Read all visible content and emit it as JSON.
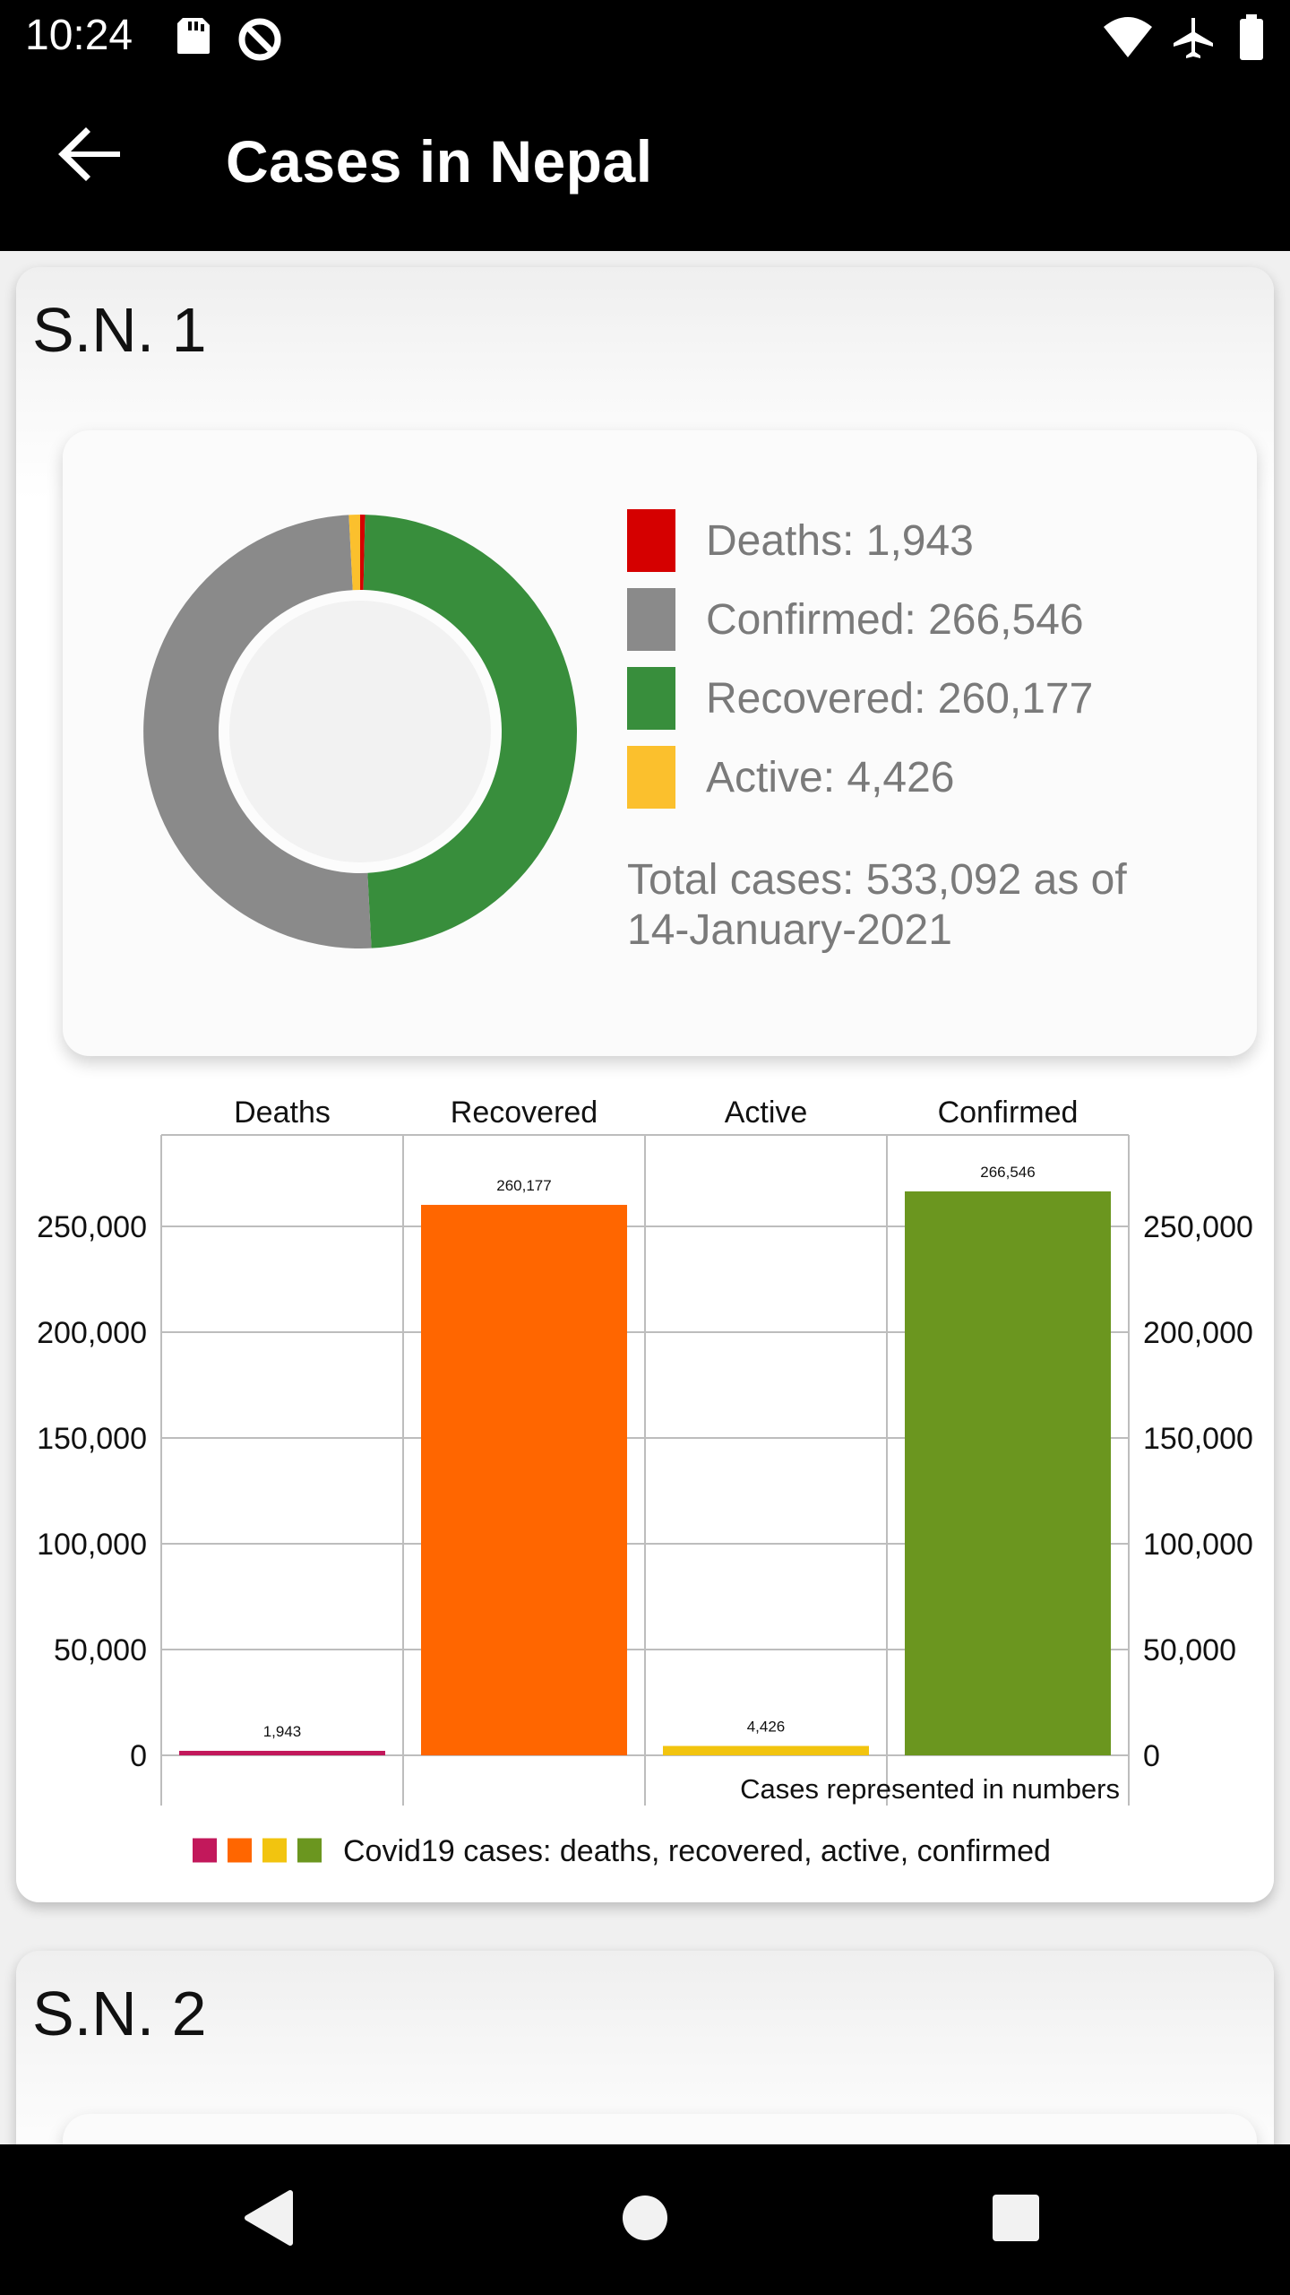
{
  "status_bar": {
    "time": "10:24",
    "left_icons": [
      "sd-card-icon",
      "data-saver-icon"
    ],
    "right_icons": [
      "wifi-icon",
      "airplane-icon",
      "battery-icon"
    ]
  },
  "app_bar": {
    "title": "Cases in Nepal",
    "back_icon": "arrow-back-icon"
  },
  "cards": [
    {
      "title": "S.N. 1",
      "donut": {
        "legend": [
          {
            "label": "Deaths: 1,943",
            "color": "#d50000"
          },
          {
            "label": "Confirmed: 266,546",
            "color": "#8a8a8a"
          },
          {
            "label": "Recovered: 260,177",
            "color": "#388e3c"
          },
          {
            "label": "Active: 4,426",
            "color": "#fbc02d"
          }
        ],
        "total_line1": "Total cases: 533,092 as of",
        "total_line2": "14-January-2021"
      },
      "bar_chart": {
        "legend_text": "Covid19 cases: deaths, recovered, active, confirmed",
        "x_axis_note": "Cases represented in numbers"
      }
    },
    {
      "title": "S.N. 2"
    }
  ],
  "chart_data": [
    {
      "type": "pie",
      "categories": [
        "Deaths",
        "Confirmed",
        "Recovered",
        "Active"
      ],
      "values": [
        1943,
        266546,
        260177,
        4426
      ],
      "colors": [
        "#d50000",
        "#8a8a8a",
        "#388e3c",
        "#fbc02d"
      ],
      "total": 533092
    },
    {
      "type": "bar",
      "categories": [
        "Deaths",
        "Recovered",
        "Active",
        "Confirmed"
      ],
      "values": [
        1943,
        260177,
        4426,
        266546
      ],
      "value_labels": [
        "1,943",
        "260,177",
        "4,426",
        "266,546"
      ],
      "colors": [
        "#c2185b",
        "#ff6600",
        "#f2c40f",
        "#6b961f"
      ],
      "ylim": [
        0,
        300000
      ],
      "yticks": [
        0,
        50000,
        100000,
        150000,
        200000,
        250000
      ],
      "ytick_labels": [
        "0",
        "50,000",
        "100,000",
        "150,000",
        "200,000",
        "250,000"
      ],
      "xlabel": "Cases represented in numbers",
      "legend": "Covid19 cases: deaths, recovered, active, confirmed",
      "grid": true
    }
  ],
  "nav_bar": {
    "icons": [
      "back-triangle-icon",
      "home-circle-icon",
      "recents-square-icon"
    ]
  }
}
